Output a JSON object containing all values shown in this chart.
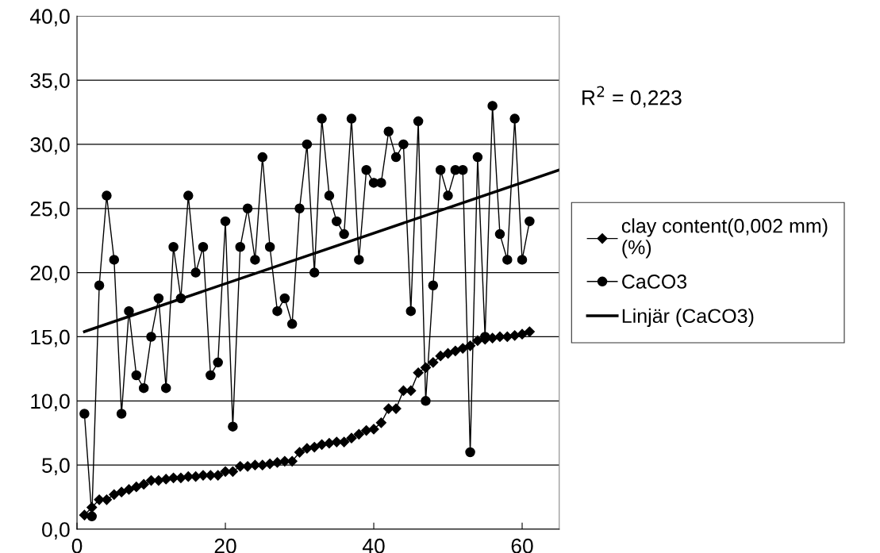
{
  "chart_data": {
    "type": "line",
    "x": [
      1,
      2,
      3,
      4,
      5,
      6,
      7,
      8,
      9,
      10,
      11,
      12,
      13,
      14,
      15,
      16,
      17,
      18,
      19,
      20,
      21,
      22,
      23,
      24,
      25,
      26,
      27,
      28,
      29,
      30,
      31,
      32,
      33,
      34,
      35,
      36,
      37,
      38,
      39,
      40,
      41,
      42,
      43,
      44,
      45,
      46,
      47,
      48,
      49,
      50,
      51,
      52,
      53,
      54,
      55,
      56,
      57,
      58,
      59,
      60,
      61
    ],
    "series": [
      {
        "name": "clay content(0,002 mm) (%)",
        "color": "#000000",
        "marker": "diamond",
        "values": [
          1.1,
          1.7,
          2.3,
          2.3,
          2.7,
          2.9,
          3.1,
          3.3,
          3.5,
          3.8,
          3.8,
          3.9,
          4.0,
          4.0,
          4.1,
          4.1,
          4.2,
          4.2,
          4.2,
          4.5,
          4.5,
          4.9,
          4.9,
          5.0,
          5.0,
          5.1,
          5.2,
          5.3,
          5.3,
          6.0,
          6.3,
          6.4,
          6.6,
          6.7,
          6.8,
          6.8,
          7.1,
          7.4,
          7.7,
          7.8,
          8.3,
          9.4,
          9.4,
          10.8,
          10.8,
          12.2,
          12.6,
          13.0,
          13.5,
          13.7,
          13.9,
          14.1,
          14.3,
          14.7,
          14.8,
          14.9,
          15.0,
          15.0,
          15.1,
          15.2,
          15.4
        ]
      },
      {
        "name": "CaCO3",
        "color": "#000000",
        "marker": "circle",
        "values": [
          9,
          1,
          19,
          26,
          21,
          9,
          17,
          12,
          11,
          15,
          18,
          11,
          22,
          18,
          26,
          20,
          22,
          12,
          13,
          24,
          8,
          22,
          25,
          21,
          29,
          22,
          17,
          18,
          16,
          25,
          30,
          20,
          32,
          26,
          24,
          23,
          32,
          21,
          28,
          27,
          27,
          31,
          29,
          30,
          17,
          31.8,
          10,
          19,
          28,
          26,
          28,
          28,
          6,
          29,
          15,
          33,
          23,
          21,
          32,
          21,
          24
        ]
      },
      {
        "name": "Linjär (CaCO3)",
        "color": "#000000",
        "marker": "none",
        "x": [
          1,
          65
        ],
        "values": [
          15.4,
          28.0
        ]
      }
    ],
    "xlim": [
      0,
      65
    ],
    "xticks": [
      0,
      20,
      40,
      60
    ],
    "ylim": [
      0,
      40
    ],
    "yticks": [
      {
        "value": 0,
        "label": "0,0"
      },
      {
        "value": 5,
        "label": "5,0"
      },
      {
        "value": 10,
        "label": "10,0"
      },
      {
        "value": 15,
        "label": "15,0"
      },
      {
        "value": 20,
        "label": "20,0"
      },
      {
        "value": 25,
        "label": "25,0"
      },
      {
        "value": 30,
        "label": "30,0"
      },
      {
        "value": 35,
        "label": "35,0"
      },
      {
        "value": 40,
        "label": "40,0"
      }
    ],
    "grid": "y",
    "legend": "right",
    "line_style": "solid",
    "annotations": [
      "R$^{2}$ = 0,223"
    ]
  }
}
